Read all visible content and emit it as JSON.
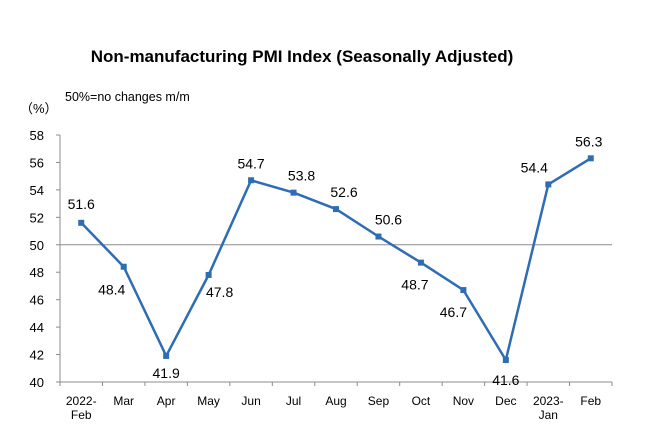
{
  "chart_data": {
    "type": "line",
    "title": "Non-manufacturing PMI Index (Seasonally Adjusted)",
    "note": "50%=no changes m/m",
    "ylabel": "（%）",
    "ylim": [
      40,
      58
    ],
    "yticks": [
      40,
      42,
      44,
      46,
      48,
      50,
      52,
      54,
      56,
      58
    ],
    "reference_line": 50,
    "categories": [
      [
        "2022-",
        "Feb"
      ],
      [
        "Mar"
      ],
      [
        "Apr"
      ],
      [
        "May"
      ],
      [
        "Jun"
      ],
      [
        "Jul"
      ],
      [
        "Aug"
      ],
      [
        "Sep"
      ],
      [
        "Oct"
      ],
      [
        "Nov"
      ],
      [
        "Dec"
      ],
      [
        "2023-",
        "Jan"
      ],
      [
        "Feb"
      ]
    ],
    "series": [
      {
        "values": [
          51.6,
          48.4,
          41.9,
          47.8,
          54.7,
          53.8,
          52.6,
          50.6,
          48.7,
          46.7,
          41.6,
          54.4,
          56.3
        ]
      }
    ],
    "labels": [
      "51.6",
      "48.4",
      "41.9",
      "47.8",
      "54.7",
      "53.8",
      "52.6",
      "50.6",
      "48.7",
      "46.7",
      "41.6",
      "54.4",
      "56.3"
    ],
    "colors": {
      "line": "#2e6db4",
      "marker": "#2e6db4",
      "axis": "#8c8c8c",
      "reference": "#8c8c8c"
    },
    "grid": false,
    "legend": "none"
  }
}
